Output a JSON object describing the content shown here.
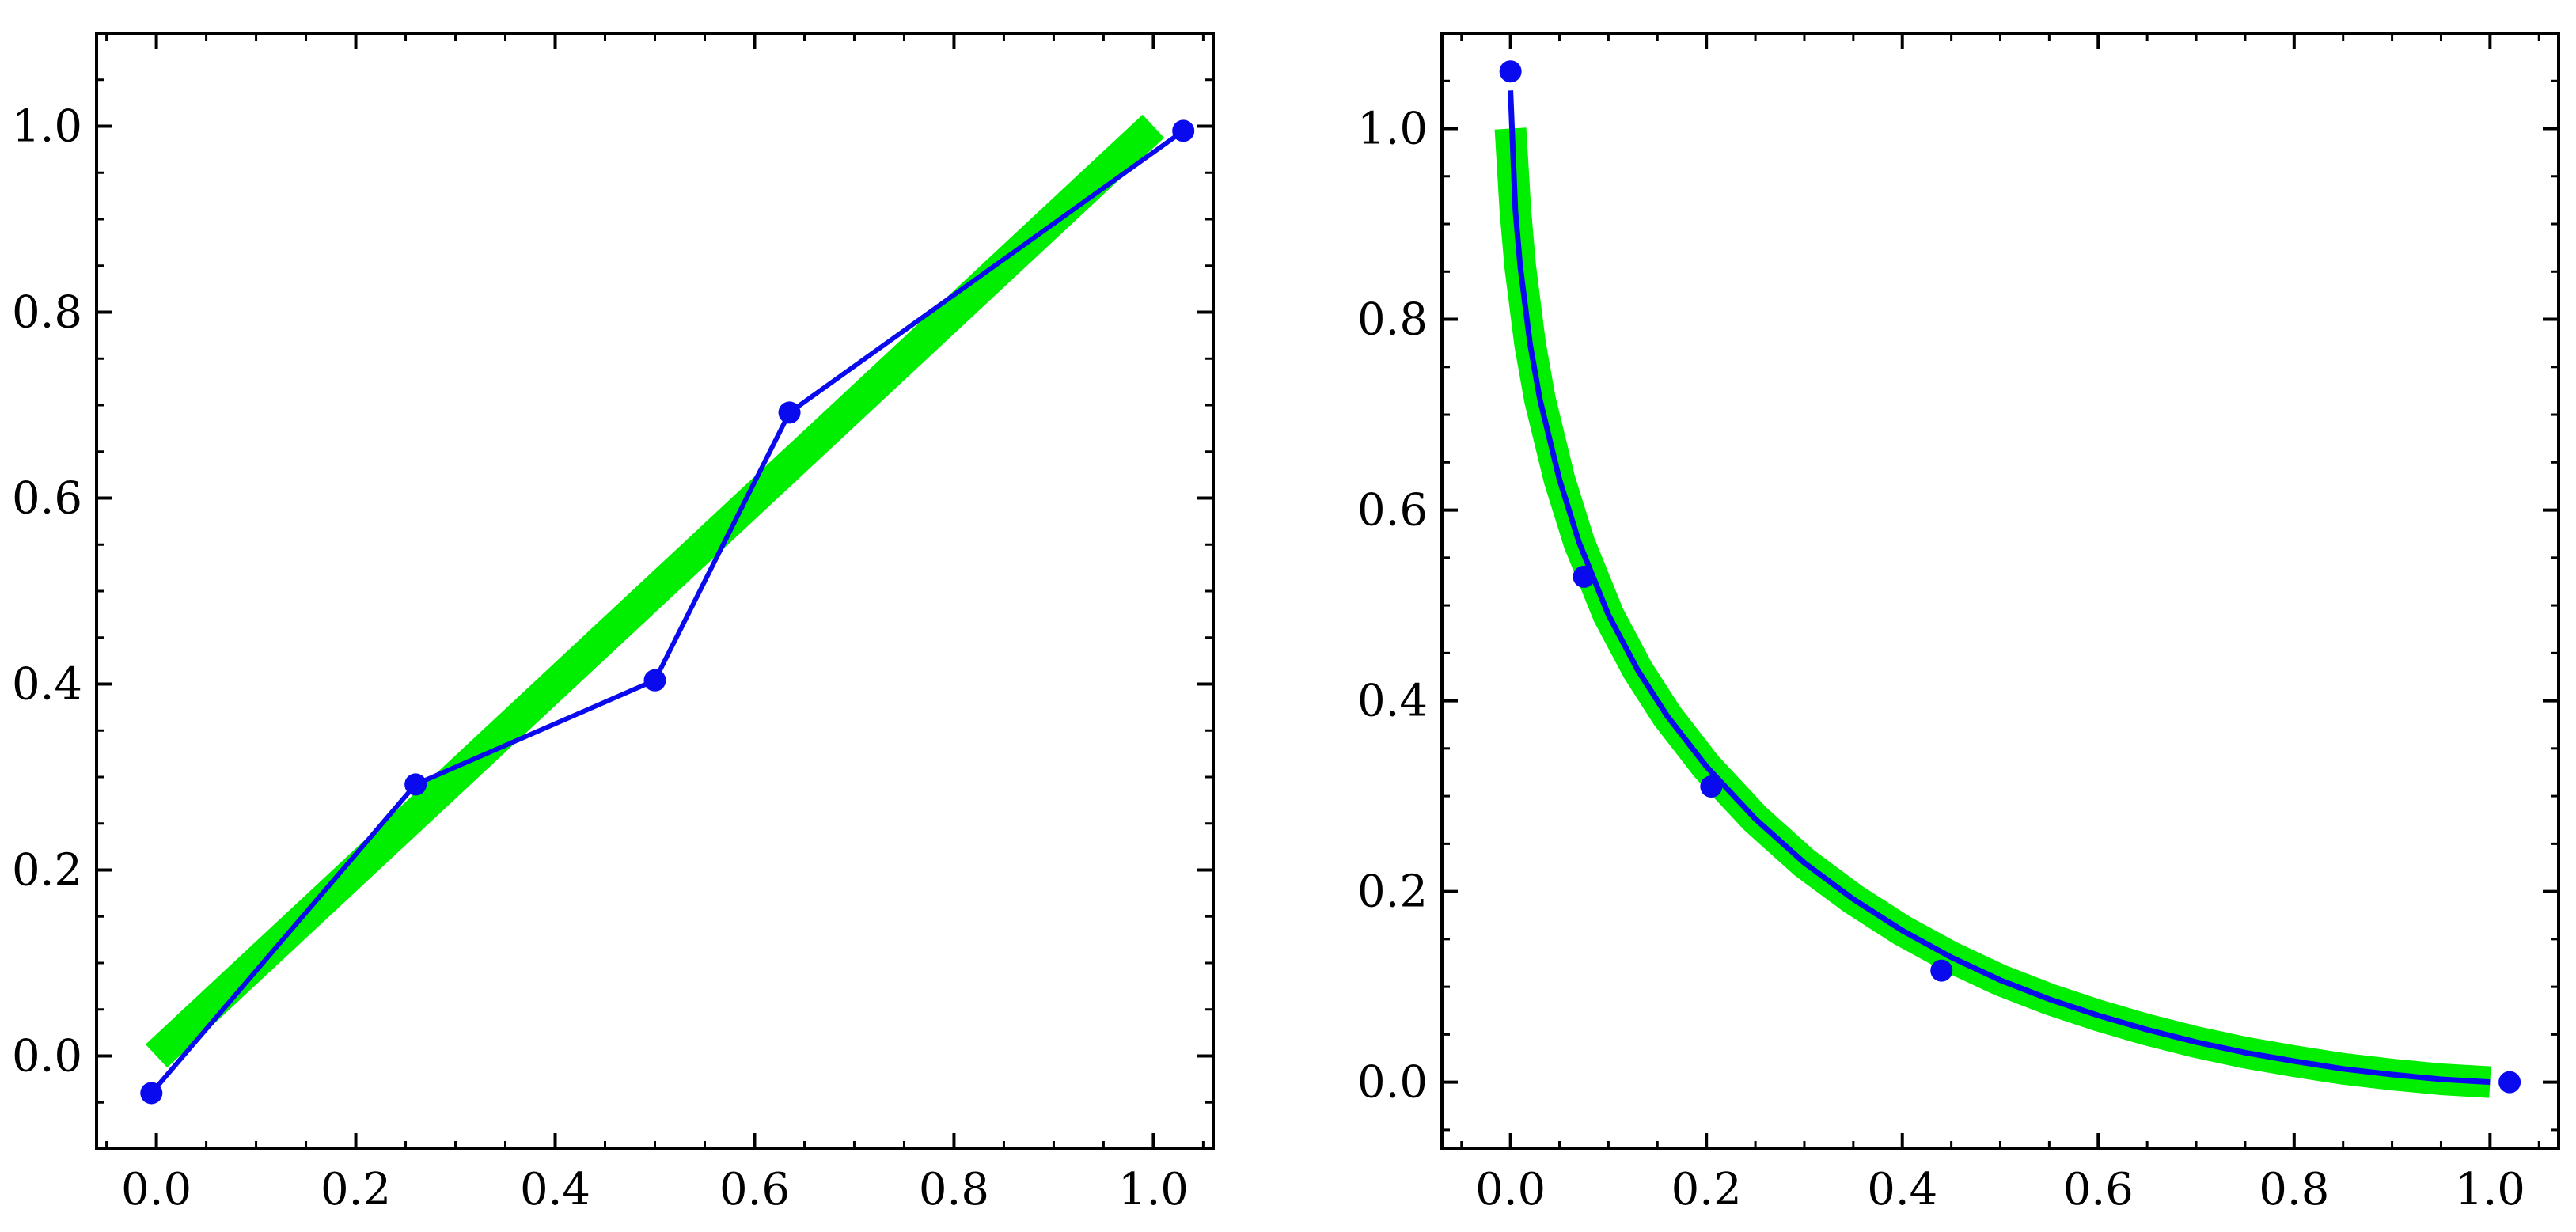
{
  "chart_data": [
    {
      "type": "line",
      "grid": false,
      "legend": "none",
      "xlim": [
        -0.06,
        1.06
      ],
      "ylim": [
        -0.1,
        1.1
      ],
      "x_ticks": [
        "0.0",
        "0.2",
        "0.4",
        "0.6",
        "0.8",
        "1.0"
      ],
      "y_ticks": [
        "0.0",
        "0.2",
        "0.4",
        "0.6",
        "0.8",
        "1.0"
      ],
      "series": [
        {
          "kind": "thick-band",
          "color": "#00ee00",
          "x": [
            0,
            1
          ],
          "y": [
            0,
            1
          ]
        },
        {
          "kind": "line-with-markers",
          "color": "#0a0aee",
          "x": [
            -0.005,
            0.26,
            0.5,
            0.635,
            1.03
          ],
          "y": [
            -0.04,
            0.292,
            0.404,
            0.692,
            0.995
          ]
        }
      ]
    },
    {
      "type": "line",
      "grid": false,
      "legend": "none",
      "xlim": [
        -0.07,
        1.07
      ],
      "ylim": [
        -0.07,
        1.1
      ],
      "x_ticks": [
        "0.0",
        "0.2",
        "0.4",
        "0.6",
        "0.8",
        "1.0"
      ],
      "y_ticks": [
        "0.0",
        "0.2",
        "0.4",
        "0.6",
        "0.8",
        "1.0"
      ],
      "series": [
        {
          "kind": "thick-band",
          "color": "#00ee00",
          "x": [
            0,
            0.005,
            0.01,
            0.02,
            0.03,
            0.05,
            0.07,
            0.1,
            0.13,
            0.16,
            0.2,
            0.25,
            0.3,
            0.35,
            0.4,
            0.45,
            0.5,
            0.55,
            0.6,
            0.65,
            0.7,
            0.75,
            0.8,
            0.85,
            0.9,
            0.95,
            1.0
          ],
          "y": [
            1.0,
            0.914,
            0.855,
            0.774,
            0.716,
            0.632,
            0.566,
            0.49,
            0.432,
            0.384,
            0.331,
            0.276,
            0.23,
            0.192,
            0.159,
            0.131,
            0.107,
            0.087,
            0.07,
            0.055,
            0.042,
            0.031,
            0.022,
            0.014,
            0.008,
            0.003,
            0.0
          ]
        },
        {
          "kind": "curve",
          "color": "#0a0aee",
          "x": [
            0,
            0.005,
            0.01,
            0.02,
            0.03,
            0.05,
            0.07,
            0.1,
            0.13,
            0.16,
            0.2,
            0.25,
            0.3,
            0.35,
            0.4,
            0.45,
            0.5,
            0.55,
            0.6,
            0.65,
            0.7,
            0.75,
            0.8,
            0.85,
            0.9,
            0.95,
            1.0
          ],
          "y": [
            1.04,
            0.914,
            0.855,
            0.774,
            0.716,
            0.632,
            0.566,
            0.49,
            0.432,
            0.384,
            0.331,
            0.276,
            0.23,
            0.192,
            0.159,
            0.131,
            0.107,
            0.087,
            0.07,
            0.055,
            0.042,
            0.031,
            0.022,
            0.014,
            0.008,
            0.003,
            0.0
          ]
        },
        {
          "kind": "markers",
          "color": "#0a0aee",
          "x": [
            0.0,
            0.075,
            0.205,
            0.44,
            1.02
          ],
          "y": [
            1.06,
            0.53,
            0.31,
            0.117,
            0.0
          ]
        }
      ]
    }
  ]
}
